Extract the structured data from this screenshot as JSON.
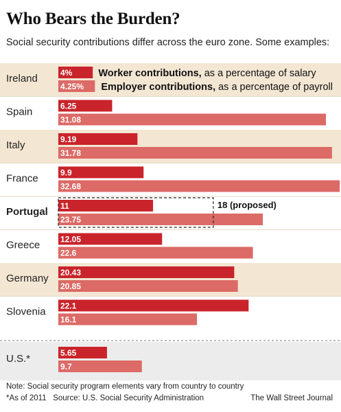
{
  "title": "Who Bears the Burden?",
  "subtitle": "Social security contributions differ across the euro zone.  Some examples:",
  "colors": {
    "worker": "#c9242b",
    "employer": "#dc6a66",
    "band_tan": "#f3e6d3",
    "band_gray": "#ececec"
  },
  "chart_data": {
    "type": "bar",
    "orientation": "horizontal",
    "title": "Who Bears the Burden?",
    "subtitle": "Social security contributions differ across the euro zone.  Some examples:",
    "categories": [
      "Ireland",
      "Spain",
      "Italy",
      "France",
      "Portugal",
      "Greece",
      "Germany",
      "Slovenia",
      "U.S.*"
    ],
    "series": [
      {
        "name": "Worker contributions, as a percentage of salary",
        "values": [
          4,
          6.25,
          9.19,
          9.9,
          11,
          12.05,
          20.43,
          22.1,
          5.65
        ],
        "labels": [
          "4%",
          "6.25",
          "9.19",
          "9.9",
          "11",
          "12.05",
          "20.43",
          "22.1",
          "5.65"
        ]
      },
      {
        "name": "Employer contributions, as a percentage of payroll",
        "values": [
          4.25,
          31.08,
          31.78,
          32.68,
          23.75,
          22.6,
          20.85,
          16.1,
          9.7
        ],
        "labels": [
          "4.25%",
          "31.08",
          "31.78",
          "32.68",
          "23.75",
          "22.6",
          "20.85",
          "16.1",
          "9.7"
        ]
      }
    ],
    "legend": {
      "worker_strong": "Worker contributions,",
      "worker_rest": " as a percentage of salary",
      "employer_strong": "Employer contributions,",
      "employer_rest": " as a percentage of payroll",
      "placement": "top, inline with Ireland"
    },
    "annotation": {
      "category": "Portugal",
      "series": "Worker contributions, as a percentage of salary",
      "value": 18,
      "label": "18 (proposed)"
    },
    "highlight_category": "Portugal",
    "xlim": [
      0,
      33
    ],
    "grid": false
  },
  "footer": {
    "note": "Note: Social security program elements vary from country to country",
    "asof": "*As of 2011",
    "source": "Source: U.S. Social Security Administration",
    "credit": "The Wall Street Journal"
  }
}
